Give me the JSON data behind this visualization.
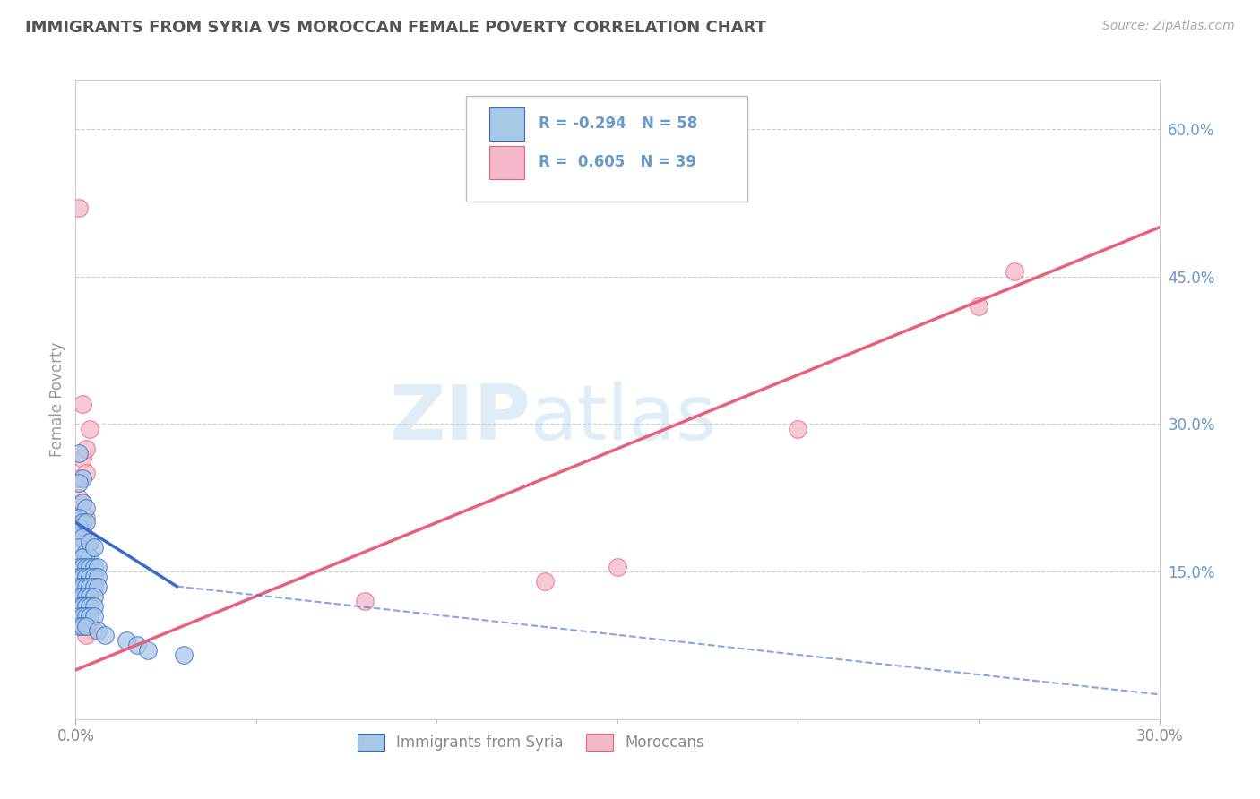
{
  "title": "IMMIGRANTS FROM SYRIA VS MOROCCAN FEMALE POVERTY CORRELATION CHART",
  "source": "Source: ZipAtlas.com",
  "ylabel": "Female Poverty",
  "xaxis_label_syria": "Immigrants from Syria",
  "xaxis_label_moroccan": "Moroccans",
  "xlim": [
    0.0,
    0.3
  ],
  "ylim": [
    0.0,
    0.65
  ],
  "xtick_positions": [
    0.0,
    0.3
  ],
  "xtick_labels": [
    "0.0%",
    "30.0%"
  ],
  "ytick_labels_right": [
    "15.0%",
    "30.0%",
    "45.0%",
    "60.0%"
  ],
  "ytick_values_right": [
    0.15,
    0.3,
    0.45,
    0.6
  ],
  "legend_r_syria": "-0.294",
  "legend_n_syria": "58",
  "legend_r_moroccan": "0.605",
  "legend_n_moroccan": "39",
  "syria_color": "#a8c8e8",
  "moroccan_color": "#f4b8c8",
  "syria_line_color": "#3a6bc9",
  "moroccan_line_color": "#e8607a",
  "watermark_zip": "ZIP",
  "watermark_atlas": "atlas",
  "background_color": "#ffffff",
  "grid_color": "#cccccc",
  "title_color": "#555555",
  "axis_label_color": "#999999",
  "right_tick_color": "#6699cc",
  "syria_scatter": [
    [
      0.001,
      0.27
    ],
    [
      0.002,
      0.245
    ],
    [
      0.001,
      0.24
    ],
    [
      0.002,
      0.22
    ],
    [
      0.003,
      0.215
    ],
    [
      0.001,
      0.205
    ],
    [
      0.002,
      0.2
    ],
    [
      0.001,
      0.195
    ],
    [
      0.003,
      0.2
    ],
    [
      0.002,
      0.185
    ],
    [
      0.001,
      0.175
    ],
    [
      0.003,
      0.17
    ],
    [
      0.004,
      0.165
    ],
    [
      0.002,
      0.165
    ],
    [
      0.004,
      0.18
    ],
    [
      0.005,
      0.175
    ],
    [
      0.001,
      0.155
    ],
    [
      0.002,
      0.155
    ],
    [
      0.003,
      0.155
    ],
    [
      0.004,
      0.155
    ],
    [
      0.005,
      0.155
    ],
    [
      0.006,
      0.155
    ],
    [
      0.001,
      0.145
    ],
    [
      0.002,
      0.145
    ],
    [
      0.003,
      0.145
    ],
    [
      0.004,
      0.145
    ],
    [
      0.005,
      0.145
    ],
    [
      0.006,
      0.145
    ],
    [
      0.001,
      0.135
    ],
    [
      0.002,
      0.135
    ],
    [
      0.003,
      0.135
    ],
    [
      0.004,
      0.135
    ],
    [
      0.005,
      0.135
    ],
    [
      0.006,
      0.135
    ],
    [
      0.001,
      0.125
    ],
    [
      0.002,
      0.125
    ],
    [
      0.003,
      0.125
    ],
    [
      0.004,
      0.125
    ],
    [
      0.005,
      0.125
    ],
    [
      0.001,
      0.115
    ],
    [
      0.002,
      0.115
    ],
    [
      0.003,
      0.115
    ],
    [
      0.004,
      0.115
    ],
    [
      0.005,
      0.115
    ],
    [
      0.001,
      0.105
    ],
    [
      0.002,
      0.105
    ],
    [
      0.003,
      0.105
    ],
    [
      0.004,
      0.105
    ],
    [
      0.005,
      0.105
    ],
    [
      0.001,
      0.095
    ],
    [
      0.002,
      0.095
    ],
    [
      0.003,
      0.095
    ],
    [
      0.006,
      0.09
    ],
    [
      0.008,
      0.085
    ],
    [
      0.014,
      0.08
    ],
    [
      0.017,
      0.075
    ],
    [
      0.02,
      0.07
    ],
    [
      0.03,
      0.065
    ]
  ],
  "moroccan_scatter": [
    [
      0.001,
      0.52
    ],
    [
      0.002,
      0.32
    ],
    [
      0.004,
      0.295
    ],
    [
      0.002,
      0.265
    ],
    [
      0.003,
      0.275
    ],
    [
      0.001,
      0.245
    ],
    [
      0.003,
      0.25
    ],
    [
      0.001,
      0.225
    ],
    [
      0.002,
      0.22
    ],
    [
      0.001,
      0.205
    ],
    [
      0.003,
      0.205
    ],
    [
      0.001,
      0.185
    ],
    [
      0.002,
      0.19
    ],
    [
      0.004,
      0.18
    ],
    [
      0.002,
      0.165
    ],
    [
      0.003,
      0.165
    ],
    [
      0.001,
      0.155
    ],
    [
      0.002,
      0.155
    ],
    [
      0.004,
      0.155
    ],
    [
      0.001,
      0.145
    ],
    [
      0.003,
      0.145
    ],
    [
      0.001,
      0.135
    ],
    [
      0.002,
      0.135
    ],
    [
      0.001,
      0.125
    ],
    [
      0.003,
      0.125
    ],
    [
      0.001,
      0.115
    ],
    [
      0.002,
      0.115
    ],
    [
      0.003,
      0.105
    ],
    [
      0.004,
      0.105
    ],
    [
      0.002,
      0.095
    ],
    [
      0.003,
      0.095
    ],
    [
      0.005,
      0.09
    ],
    [
      0.003,
      0.085
    ],
    [
      0.15,
      0.155
    ],
    [
      0.2,
      0.295
    ],
    [
      0.25,
      0.42
    ],
    [
      0.26,
      0.455
    ],
    [
      0.13,
      0.14
    ],
    [
      0.08,
      0.12
    ]
  ],
  "syria_line_solid": [
    [
      0.0,
      0.2
    ],
    [
      0.028,
      0.135
    ]
  ],
  "syria_line_dash": [
    [
      0.028,
      0.135
    ],
    [
      0.3,
      0.025
    ]
  ],
  "moroccan_line": [
    [
      0.0,
      0.05
    ],
    [
      0.3,
      0.5
    ]
  ]
}
